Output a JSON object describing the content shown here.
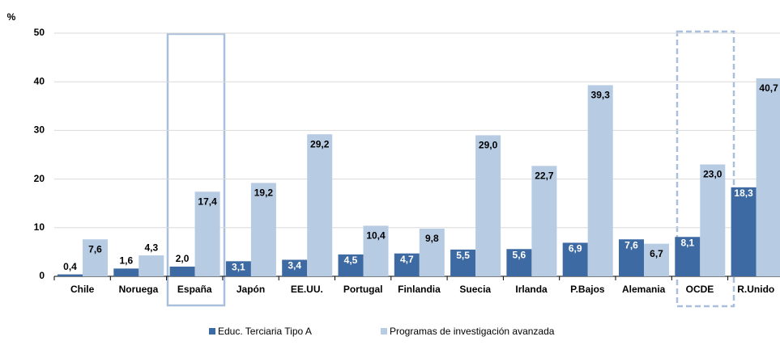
{
  "chart_data": {
    "type": "bar",
    "y_label": "%",
    "categories": [
      "Chile",
      "Noruega",
      "España",
      "Japón",
      "EE.UU.",
      "Portugal",
      "Finlandia",
      "Suecia",
      "Irlanda",
      "P.Bajos",
      "Alemania",
      "OCDE",
      "R.Unido"
    ],
    "series": [
      {
        "name": "Educ. Terciaria Tipo A",
        "color": "#3d6aa3",
        "values": [
          0.4,
          1.6,
          2.0,
          3.1,
          3.4,
          4.5,
          4.7,
          5.5,
          5.6,
          6.9,
          7.6,
          8.1,
          18.3
        ],
        "value_labels": [
          "0,4",
          "1,6",
          "2,0",
          "3,1",
          "3,4",
          "4,5",
          "4,7",
          "5,5",
          "5,6",
          "6,9",
          "7,6",
          "8,1",
          "18,3"
        ]
      },
      {
        "name": "Programas de investigación avanzada",
        "color": "#b7cbe3",
        "values": [
          7.6,
          4.3,
          17.4,
          19.2,
          29.2,
          10.4,
          9.8,
          29.0,
          22.7,
          39.3,
          6.7,
          23.0,
          40.7
        ],
        "value_labels": [
          "7,6",
          "4,3",
          "17,4",
          "19,2",
          "29,2",
          "10,4",
          "9,8",
          "29,0",
          "22,7",
          "39,3",
          "6,7",
          "23,0",
          "40,7"
        ]
      }
    ],
    "ylim": [
      0,
      50
    ],
    "yticks": [
      0,
      10,
      20,
      30,
      40,
      50
    ],
    "grid": true
  }
}
